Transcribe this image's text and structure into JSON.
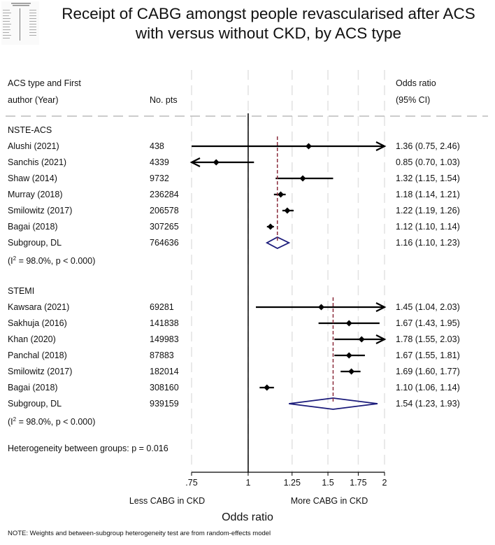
{
  "title_line1": "Receipt of CABG amongst people revascularised after ACS",
  "title_line2": "with versus without CKD, by ACS type",
  "headers": {
    "col1_line1": "ACS type and First",
    "col1_line2": "author (Year)",
    "col2": "No. pts",
    "col3_line1": "Odds ratio",
    "col3_line2": "(95% CI)"
  },
  "chart_data": {
    "type": "forest",
    "xlabel": "Odds ratio",
    "x_scale": "log",
    "x_ticks": [
      0.75,
      1,
      1.25,
      1.5,
      1.75,
      2
    ],
    "x_tick_labels": [
      ".75",
      "1",
      "1.25",
      "1.5",
      "1.75",
      "2"
    ],
    "xlim": [
      0.75,
      2
    ],
    "null_value": 1,
    "direction_left": "Less CABG in CKD",
    "direction_right": "More CABG in CKD",
    "groups": [
      {
        "name": "NSTE-ACS",
        "studies": [
          {
            "label": "Alushi (2021)",
            "n": "438",
            "or": 1.36,
            "lo": 0.75,
            "hi": 2.46,
            "ci_text": "1.36 (0.75, 2.46)"
          },
          {
            "label": "Sanchis (2021)",
            "n": "4339",
            "or": 0.85,
            "lo": 0.7,
            "hi": 1.03,
            "ci_text": "0.85 (0.70, 1.03)"
          },
          {
            "label": "Shaw (2014)",
            "n": "9732",
            "or": 1.32,
            "lo": 1.15,
            "hi": 1.54,
            "ci_text": "1.32 (1.15, 1.54)"
          },
          {
            "label": "Murray (2018)",
            "n": "236284",
            "or": 1.18,
            "lo": 1.14,
            "hi": 1.21,
            "ci_text": "1.18 (1.14, 1.21)"
          },
          {
            "label": "Smilowitz (2017)",
            "n": "206578",
            "or": 1.22,
            "lo": 1.19,
            "hi": 1.26,
            "ci_text": "1.22 (1.19, 1.26)"
          },
          {
            "label": "Bagai (2018)",
            "n": "307265",
            "or": 1.12,
            "lo": 1.1,
            "hi": 1.14,
            "ci_text": "1.12 (1.10, 1.14)"
          }
        ],
        "subgroup": {
          "label": "Subgroup, DL",
          "n": "764636",
          "or": 1.16,
          "lo": 1.1,
          "hi": 1.23,
          "ci_text": "1.16 (1.10, 1.23)"
        },
        "het_prefix": "(I",
        "het_sup": "2",
        "het_suffix": " = 98.0%, p < 0.000)"
      },
      {
        "name": "STEMI",
        "studies": [
          {
            "label": "Kawsara (2021)",
            "n": "69281",
            "or": 1.45,
            "lo": 1.04,
            "hi": 2.03,
            "ci_text": "1.45 (1.04, 2.03)"
          },
          {
            "label": "Sakhuja (2016)",
            "n": "141838",
            "or": 1.67,
            "lo": 1.43,
            "hi": 1.95,
            "ci_text": "1.67 (1.43, 1.95)"
          },
          {
            "label": "Khan (2020)",
            "n": "149983",
            "or": 1.78,
            "lo": 1.55,
            "hi": 2.03,
            "ci_text": "1.78 (1.55, 2.03)"
          },
          {
            "label": "Panchal (2018)",
            "n": "87883",
            "or": 1.67,
            "lo": 1.55,
            "hi": 1.81,
            "ci_text": "1.67 (1.55, 1.81)"
          },
          {
            "label": "Smilowitz (2017)",
            "n": "182014",
            "or": 1.69,
            "lo": 1.6,
            "hi": 1.77,
            "ci_text": "1.69 (1.60, 1.77)"
          },
          {
            "label": "Bagai (2018)",
            "n": "308160",
            "or": 1.1,
            "lo": 1.06,
            "hi": 1.14,
            "ci_text": "1.10 (1.06, 1.14)"
          }
        ],
        "subgroup": {
          "label": "Subgroup, DL",
          "n": "939159",
          "or": 1.54,
          "lo": 1.23,
          "hi": 1.93,
          "ci_text": "1.54 (1.23, 1.93)"
        },
        "het_prefix": "(I",
        "het_sup": "2",
        "het_suffix": " = 98.0%, p < 0.000)"
      }
    ],
    "between_groups": "Heterogeneity between groups: p = 0.016"
  },
  "note": "NOTE: Weights and between-subgroup heterogeneity test are from random-effects model",
  "colors": {
    "diamond": "#1a1a7a",
    "pooled_line": "#8b2c3c",
    "grid": "#e2e2e2",
    "text": "#111111"
  }
}
